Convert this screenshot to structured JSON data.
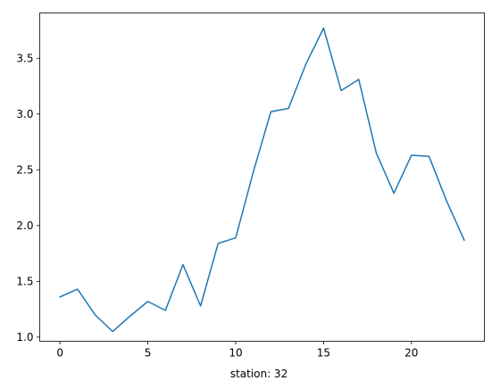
{
  "chart_data": {
    "type": "line",
    "title": "",
    "xlabel": "station: 32",
    "ylabel": "",
    "xlim": [
      -1.15,
      24.15
    ],
    "ylim": [
      0.963,
      3.906
    ],
    "xticks": [
      0,
      5,
      10,
      15,
      20
    ],
    "xtick_labels": [
      "0",
      "5",
      "10",
      "15",
      "20"
    ],
    "yticks": [
      1.0,
      1.5,
      2.0,
      2.5,
      3.0,
      3.5
    ],
    "ytick_labels": [
      "1.0",
      "1.5",
      "2.0",
      "2.5",
      "3.0",
      "3.5"
    ],
    "grid": false,
    "legend": "none",
    "series": [
      {
        "color": "#1f77b4",
        "x": [
          0,
          1,
          2,
          3,
          4,
          5,
          6,
          7,
          8,
          9,
          10,
          11,
          12,
          13,
          14,
          15,
          16,
          17,
          18,
          19,
          20,
          21,
          22,
          23
        ],
        "values": [
          1.36,
          1.43,
          1.2,
          1.05,
          1.19,
          1.32,
          1.24,
          1.65,
          1.28,
          1.84,
          1.89,
          2.48,
          3.02,
          3.05,
          3.45,
          3.77,
          3.21,
          3.31,
          2.65,
          2.29,
          2.63,
          2.62,
          2.22,
          1.87
        ]
      }
    ]
  }
}
